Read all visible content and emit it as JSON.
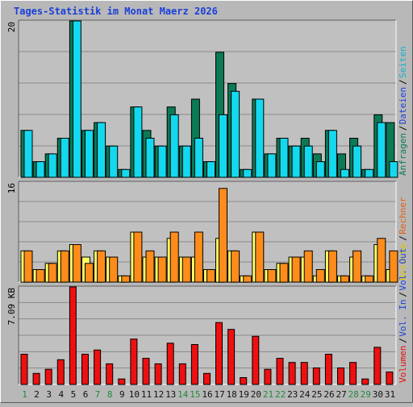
{
  "title": "Tages-Statistik im Monat Maerz 2026",
  "colors": {
    "background": "#b8b8b8",
    "plot_bg": "#c0c0c0",
    "grid": "#8a8a8a",
    "title": "#1a3fd8",
    "hits": "#0b7a55",
    "files": "#14d8ee",
    "pages": "#1bd2e4",
    "visits": "#ffff66",
    "sites": "#ff8c1a",
    "kbytes": "#ee1010",
    "weekday": "#111111",
    "weekend": "#1f8a3a"
  },
  "chart_data": [
    {
      "type": "bar",
      "title": "Tages-Statistik im Monat Maerz 2026",
      "ymax_label": "20",
      "ylim": [
        0,
        20
      ],
      "categories": [
        "1",
        "2",
        "3",
        "4",
        "5",
        "6",
        "7",
        "8",
        "9",
        "10",
        "11",
        "12",
        "13",
        "14",
        "15",
        "16",
        "17",
        "18",
        "19",
        "20",
        "21",
        "22",
        "23",
        "24",
        "25",
        "26",
        "27",
        "28",
        "29",
        "30",
        "31"
      ],
      "weekend_days": [
        "1",
        "7",
        "8",
        "14",
        "15",
        "21",
        "22",
        "28",
        "29"
      ],
      "side_labels": [
        {
          "text": "Anfragen",
          "color": "#0b7a55"
        },
        {
          "text": "Dateien",
          "color": "#1a3fd8"
        },
        {
          "text": "Seiten",
          "color": "#14b0c8"
        }
      ],
      "series": [
        {
          "name": "Anfragen",
          "values": [
            6,
            2,
            3,
            5,
            20,
            6,
            7,
            4,
            1,
            9,
            6,
            4,
            9,
            4,
            10,
            2,
            16,
            12,
            1,
            10,
            3,
            5,
            4,
            5,
            3,
            6,
            3,
            5,
            1,
            8,
            7
          ]
        },
        {
          "name": "Dateien",
          "values": [
            6,
            2,
            3,
            5,
            20,
            6,
            7,
            4,
            1,
            9,
            5,
            4,
            8,
            4,
            5,
            2,
            8,
            11,
            1,
            10,
            3,
            5,
            4,
            4,
            2,
            6,
            1,
            4,
            1,
            7,
            2
          ]
        }
      ]
    },
    {
      "type": "bar",
      "ymax_label": "16",
      "ylim": [
        0,
        16
      ],
      "side_labels": [
        {
          "text": "Besuche",
          "color": "#d8c800"
        },
        {
          "text": "Rechner",
          "color": "#e06010"
        }
      ],
      "series": [
        {
          "name": "Besuche",
          "values": [
            5,
            2,
            3,
            5,
            6,
            4,
            5,
            4,
            1,
            8,
            4,
            4,
            7,
            4,
            4,
            2,
            7,
            5,
            1,
            8,
            2,
            3,
            4,
            4,
            1,
            5,
            1,
            4,
            1,
            6,
            2
          ]
        },
        {
          "name": "Rechner",
          "values": [
            5,
            2,
            3,
            5,
            6,
            3,
            5,
            4,
            1,
            8,
            5,
            4,
            8,
            4,
            8,
            2,
            15,
            5,
            1,
            8,
            2,
            3,
            4,
            5,
            2,
            5,
            1,
            5,
            1,
            7,
            5
          ]
        }
      ]
    },
    {
      "type": "bar",
      "ymax_label": "7.09 KB",
      "ylim": [
        0,
        7.09
      ],
      "side_labels": [
        {
          "text": "Volumen",
          "color": "#dd1010"
        },
        {
          "text": "Vol. In",
          "color": "#1a3fd8"
        },
        {
          "text": "Vol. Out",
          "color": "#1a3fd8"
        }
      ],
      "series": [
        {
          "name": "Volumen",
          "values": [
            2.2,
            0.8,
            1.1,
            1.8,
            7.09,
            2.2,
            2.5,
            1.5,
            0.4,
            3.3,
            1.9,
            1.5,
            3.0,
            1.5,
            2.9,
            0.8,
            4.5,
            4.0,
            0.5,
            3.5,
            1.1,
            1.9,
            1.6,
            1.6,
            1.2,
            2.2,
            1.2,
            1.6,
            0.4,
            2.7,
            0.9
          ]
        }
      ]
    }
  ]
}
